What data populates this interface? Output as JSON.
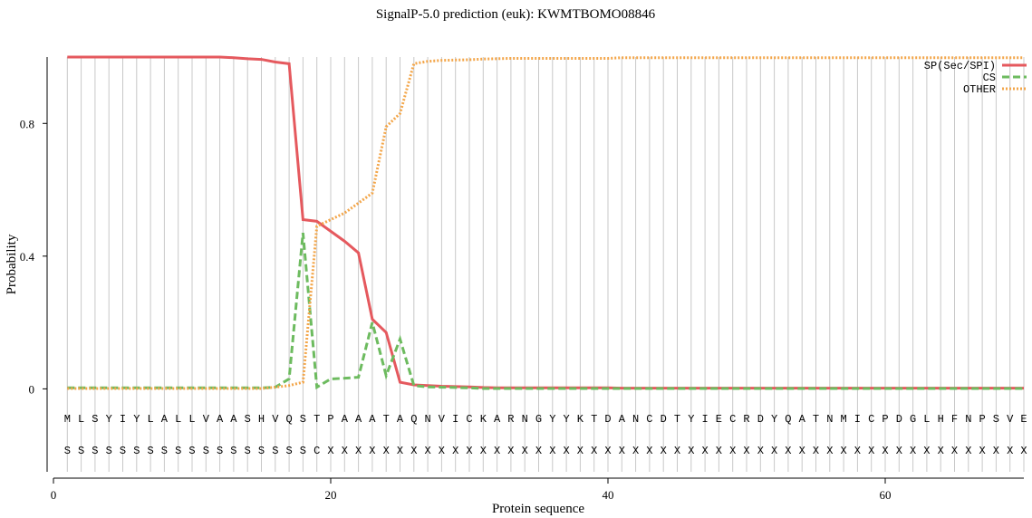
{
  "chart_data": {
    "type": "line",
    "title": "SignalP-5.0 prediction (euk):  KWMTBOMO08846",
    "xlabel": "Protein sequence",
    "ylabel": "Probability",
    "x": [
      1,
      2,
      3,
      4,
      5,
      6,
      7,
      8,
      9,
      10,
      11,
      12,
      13,
      14,
      15,
      16,
      17,
      18,
      19,
      20,
      21,
      22,
      23,
      24,
      25,
      26,
      27,
      28,
      29,
      30,
      31,
      32,
      33,
      34,
      35,
      36,
      37,
      38,
      39,
      40,
      41,
      42,
      43,
      44,
      45,
      46,
      47,
      48,
      49,
      50,
      51,
      52,
      53,
      54,
      55,
      56,
      57,
      58,
      59,
      60,
      61,
      62,
      63,
      64,
      65,
      66,
      67,
      68,
      69,
      70
    ],
    "series": [
      {
        "name": "SP(Sec/SPI)",
        "color": "#e5595e",
        "dash": "solid",
        "values": [
          1,
          1,
          1,
          1,
          1,
          1,
          1,
          1,
          1,
          1,
          1,
          1,
          0.998,
          0.995,
          0.993,
          0.985,
          0.98,
          0.51,
          0.505,
          0.475,
          0.445,
          0.41,
          0.21,
          0.17,
          0.02,
          0.012,
          0.01,
          0.008,
          0.007,
          0.006,
          0.004,
          0.003,
          0.003,
          0.003,
          0.003,
          0.003,
          0.003,
          0.003,
          0.003,
          0.003,
          0.002,
          0.002,
          0.002,
          0.002,
          0.002,
          0.002,
          0.002,
          0.002,
          0.002,
          0.002,
          0.002,
          0.002,
          0.002,
          0.002,
          0.002,
          0.002,
          0.002,
          0.002,
          0.002,
          0.002,
          0.002,
          0.002,
          0.002,
          0.002,
          0.002,
          0.002,
          0.002,
          0.002,
          0.002,
          0.002
        ]
      },
      {
        "name": "CS",
        "color": "#6dbb5f",
        "dash": "dashed",
        "values": [
          0.003,
          0.003,
          0.003,
          0.003,
          0.003,
          0.003,
          0.003,
          0.003,
          0.003,
          0.003,
          0.003,
          0.003,
          0.003,
          0.003,
          0.003,
          0.005,
          0.03,
          0.47,
          0.005,
          0.03,
          0.032,
          0.035,
          0.2,
          0.04,
          0.15,
          0.01,
          0.006,
          0.005,
          0.004,
          0.003,
          0.001,
          0.001,
          0.001,
          0.001,
          0.001,
          0.001,
          0.001,
          0.001,
          0.001,
          0.001,
          0.001,
          0.001,
          0.001,
          0.001,
          0.001,
          0.001,
          0.001,
          0.001,
          0.001,
          0.001,
          0.001,
          0.001,
          0.001,
          0.001,
          0.001,
          0.001,
          0.001,
          0.001,
          0.001,
          0.001,
          0.001,
          0.001,
          0.001,
          0.001,
          0.001,
          0.001,
          0.001,
          0.001,
          0.001,
          0.001
        ]
      },
      {
        "name": "OTHER",
        "color": "#f3a64a",
        "dash": "dotted",
        "values": [
          0.001,
          0.001,
          0.001,
          0.001,
          0.001,
          0.001,
          0.001,
          0.001,
          0.001,
          0.001,
          0.001,
          0.001,
          0.001,
          0.001,
          0.001,
          0.005,
          0.01,
          0.02,
          0.49,
          0.51,
          0.53,
          0.56,
          0.59,
          0.79,
          0.83,
          0.98,
          0.987,
          0.99,
          0.991,
          0.992,
          0.994,
          0.995,
          0.996,
          0.996,
          0.996,
          0.996,
          0.996,
          0.996,
          0.996,
          0.996,
          0.998,
          0.998,
          0.998,
          0.998,
          0.998,
          0.998,
          0.998,
          0.998,
          0.998,
          0.998,
          0.998,
          0.998,
          0.998,
          0.998,
          0.998,
          0.998,
          0.998,
          0.998,
          0.998,
          0.998,
          0.998,
          0.998,
          0.998,
          0.998,
          0.998,
          0.998,
          0.998,
          0.998,
          0.998,
          0.998
        ]
      }
    ],
    "sequence": [
      "M",
      "L",
      "S",
      "Y",
      "I",
      "Y",
      "L",
      "A",
      "L",
      "L",
      "V",
      "A",
      "A",
      "S",
      "H",
      "V",
      "Q",
      "S",
      "T",
      "P",
      "A",
      "A",
      "A",
      "T",
      "A",
      "Q",
      "N",
      "V",
      "I",
      "C",
      "K",
      "A",
      "R",
      "N",
      "G",
      "Y",
      "Y",
      "K",
      "T",
      "D",
      "A",
      "N",
      "C",
      "D",
      "T",
      "Y",
      "I",
      "E",
      "C",
      "R",
      "D",
      "Y",
      "Q",
      "A",
      "T",
      "N",
      "M",
      "I",
      "C",
      "P",
      "D",
      "G",
      "L",
      "H",
      "F",
      "N",
      "P",
      "S",
      "V",
      "E"
    ],
    "labels": [
      "S",
      "S",
      "S",
      "S",
      "S",
      "S",
      "S",
      "S",
      "S",
      "S",
      "S",
      "S",
      "S",
      "S",
      "S",
      "S",
      "S",
      "S",
      "C",
      "X",
      "X",
      "X",
      "X",
      "X",
      "X",
      "X",
      "X",
      "X",
      "X",
      "X",
      "X",
      "X",
      "X",
      "X",
      "X",
      "X",
      "X",
      "X",
      "X",
      "X",
      "X",
      "X",
      "X",
      "X",
      "X",
      "X",
      "X",
      "X",
      "X",
      "X",
      "X",
      "X",
      "X",
      "X",
      "X",
      "X",
      "X",
      "X",
      "X",
      "X",
      "X",
      "X",
      "X",
      "X",
      "X",
      "X",
      "X",
      "X",
      "X",
      "X"
    ],
    "xlim": [
      0,
      70
    ],
    "ylim": [
      -0.25,
      1.0
    ],
    "xticks": [
      0,
      20,
      40,
      60
    ],
    "yticks": [
      0,
      0.4,
      0.8
    ],
    "grid": true,
    "legend": "upper right"
  }
}
